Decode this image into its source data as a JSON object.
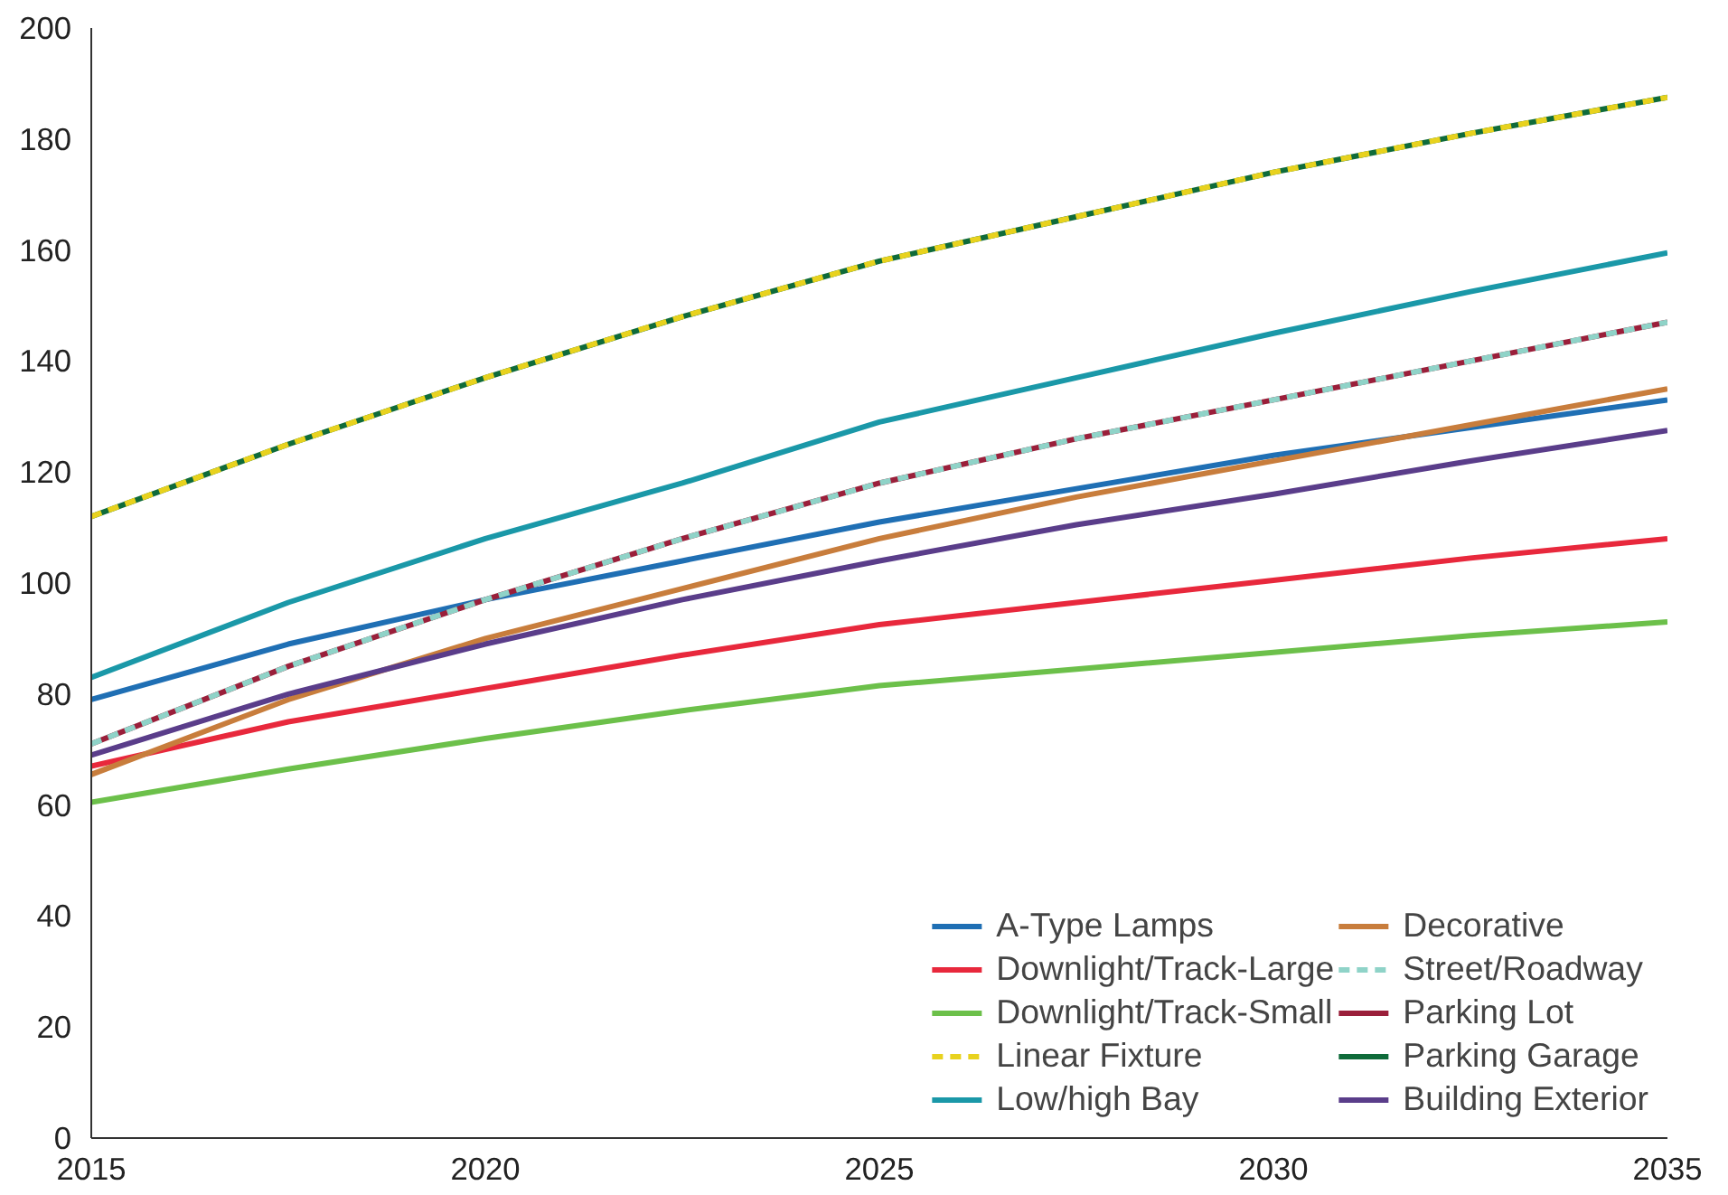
{
  "chart_data": {
    "type": "line",
    "x": [
      2015,
      2017.5,
      2020,
      2022.5,
      2025,
      2027.5,
      2030,
      2032.5,
      2035
    ],
    "xlim": [
      2015,
      2035
    ],
    "xticks": [
      2015,
      2020,
      2025,
      2030,
      2035
    ],
    "ylim": [
      0,
      200
    ],
    "yticks": [
      0,
      20,
      40,
      60,
      80,
      100,
      120,
      140,
      160,
      180,
      200
    ],
    "grid": false,
    "legend": "bottom right",
    "line_style": "solid",
    "series": [
      {
        "name": "A-Type Lamps",
        "color": "#1f6fb4",
        "values": [
          79,
          89,
          97,
          104,
          111,
          117,
          123,
          128,
          133
        ]
      },
      {
        "name": "Downlight/Track-Large",
        "color": "#e8283c",
        "values": [
          67,
          75,
          81,
          87,
          92.5,
          96.5,
          100.5,
          104.5,
          108
        ]
      },
      {
        "name": "Downlight/Track-Small",
        "color": "#6cc04a",
        "values": [
          60.5,
          66.5,
          72,
          77,
          81.5,
          84.5,
          87.5,
          90.5,
          93
        ]
      },
      {
        "name": "Linear Fixture",
        "color": "#e8d21e",
        "line_style": "dashed",
        "values": [
          112,
          125,
          137,
          148,
          158,
          166,
          174,
          181,
          187.5
        ]
      },
      {
        "name": "Low/high Bay",
        "color": "#1a98a8",
        "values": [
          83,
          96.5,
          108,
          118,
          129,
          137,
          145,
          152.5,
          159.5
        ]
      },
      {
        "name": "Decorative",
        "color": "#c87d3c",
        "values": [
          65.5,
          79,
          90,
          99,
          108,
          115.5,
          122,
          128.5,
          135
        ]
      },
      {
        "name": "Street/Roadway",
        "color": "#8fd3c8",
        "line_style": "dashed",
        "values": [
          71,
          85,
          97,
          108,
          118,
          126,
          133,
          140,
          147
        ]
      },
      {
        "name": "Parking Lot",
        "color": "#9a1f3a",
        "values": [
          71,
          85,
          97,
          108,
          118,
          126,
          133,
          140,
          147
        ]
      },
      {
        "name": "Parking Garage",
        "color": "#0f6b3a",
        "values": [
          112,
          125,
          137,
          148,
          158,
          166,
          174,
          181,
          187.5
        ]
      },
      {
        "name": "Building Exterior",
        "color": "#5a3d8a",
        "values": [
          69,
          80,
          89,
          97,
          104,
          110.5,
          116,
          122,
          127.5
        ]
      }
    ]
  }
}
